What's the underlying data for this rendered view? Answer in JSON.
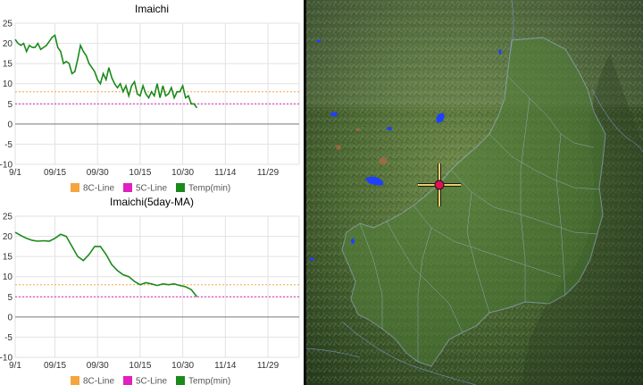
{
  "chart_data": [
    {
      "type": "line",
      "title": "Imaichi",
      "x_tick_labels": [
        "9/1",
        "09/15",
        "09/30",
        "10/15",
        "10/30",
        "11/14",
        "11/29"
      ],
      "x_tick_days": [
        0,
        14,
        29,
        44,
        59,
        74,
        89
      ],
      "xlim": [
        0,
        100
      ],
      "ylim": [
        -10,
        25
      ],
      "y_ticks": [
        25,
        20,
        15,
        10,
        5,
        0,
        -5,
        -10
      ],
      "grid": true,
      "legend_position": "bottom",
      "series": [
        {
          "name": "8C-Line",
          "color": "#f5a540",
          "style": "dashed",
          "x": [
            0,
            100
          ],
          "y": [
            8,
            8
          ]
        },
        {
          "name": "5C-Line",
          "color": "#e020c0",
          "style": "dashed",
          "x": [
            0,
            100
          ],
          "y": [
            5,
            5
          ]
        },
        {
          "name": "Temp(min)",
          "color": "#1a8a1a",
          "style": "solid",
          "x": [
            0,
            1,
            2,
            3,
            4,
            5,
            6,
            7,
            8,
            9,
            10,
            11,
            12,
            13,
            14,
            15,
            16,
            17,
            18,
            19,
            20,
            21,
            22,
            23,
            24,
            25,
            26,
            27,
            28,
            29,
            30,
            31,
            32,
            33,
            34,
            35,
            36,
            37,
            38,
            39,
            40,
            41,
            42,
            43,
            44,
            45,
            46,
            47,
            48,
            49,
            50,
            51,
            52,
            53,
            54,
            55,
            56,
            57,
            58,
            59,
            60,
            61,
            62,
            63,
            64
          ],
          "y": [
            21,
            20,
            19.5,
            20,
            18,
            19.5,
            19,
            19,
            20,
            18.5,
            19,
            19.5,
            20.5,
            21.5,
            22,
            19,
            18,
            15,
            15.5,
            15,
            12.5,
            13,
            16,
            19.5,
            18,
            17,
            15,
            14,
            13,
            11,
            10,
            12.5,
            11,
            14,
            11.5,
            10,
            9,
            10,
            8,
            9.5,
            7,
            9.5,
            10.5,
            7.5,
            7,
            9.5,
            7.5,
            6.5,
            8,
            7,
            10,
            6.5,
            9.5,
            7,
            7.5,
            9,
            6.5,
            8,
            8,
            9.5,
            6.5,
            7,
            5,
            5,
            4
          ]
        }
      ]
    },
    {
      "type": "line",
      "title": "Imaichi(5day-MA)",
      "x_tick_labels": [
        "9/1",
        "09/15",
        "09/30",
        "10/15",
        "10/30",
        "11/14",
        "11/29"
      ],
      "x_tick_days": [
        0,
        14,
        29,
        44,
        59,
        74,
        89
      ],
      "xlim": [
        0,
        100
      ],
      "ylim": [
        -10,
        25
      ],
      "y_ticks": [
        25,
        20,
        15,
        10,
        5,
        0,
        -5,
        -10
      ],
      "grid": true,
      "legend_position": "bottom",
      "series": [
        {
          "name": "8C-Line",
          "color": "#f5a540",
          "style": "dashed",
          "x": [
            0,
            100
          ],
          "y": [
            8,
            8
          ]
        },
        {
          "name": "5C-Line",
          "color": "#e020c0",
          "style": "dashed",
          "x": [
            0,
            100
          ],
          "y": [
            5,
            5
          ]
        },
        {
          "name": "Temp(min)",
          "color": "#1a8a1a",
          "style": "solid",
          "x": [
            0,
            2,
            4,
            6,
            8,
            10,
            12,
            14,
            16,
            18,
            20,
            22,
            24,
            26,
            28,
            30,
            32,
            34,
            36,
            38,
            40,
            42,
            44,
            46,
            48,
            50,
            52,
            54,
            56,
            58,
            60,
            62,
            64
          ],
          "y": [
            21,
            20.2,
            19.5,
            19,
            18.8,
            18.9,
            18.8,
            19.5,
            20.5,
            20,
            17.5,
            15,
            14,
            15.5,
            17.5,
            17.5,
            15.5,
            13,
            11.5,
            10.5,
            10,
            8.8,
            8,
            8.5,
            8.2,
            7.8,
            8.2,
            8,
            8.2,
            7.8,
            7.5,
            6.8,
            5
          ]
        }
      ]
    }
  ],
  "map": {
    "marker_icon": "crosshair-target-icon",
    "marker_color": "#e0105a",
    "crosshair_color": "#e8d070"
  }
}
